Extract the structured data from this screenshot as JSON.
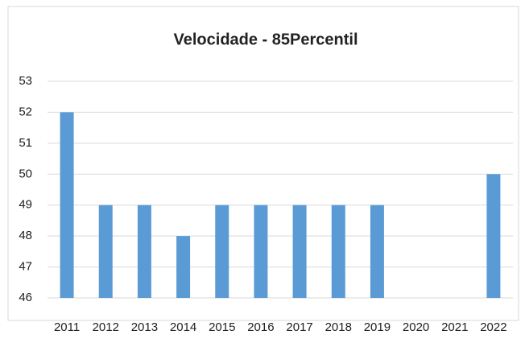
{
  "chart_data": {
    "type": "bar",
    "title": "Velocidade - 85Percentil",
    "categories": [
      "2011",
      "2012",
      "2013",
      "2014",
      "2015",
      "2016",
      "2017",
      "2018",
      "2019",
      "2020",
      "2021",
      "2022"
    ],
    "values": [
      52,
      49,
      49,
      48,
      49,
      49,
      49,
      49,
      49,
      null,
      null,
      50
    ],
    "color": "#5b9bd5",
    "ylim": [
      46,
      53
    ],
    "yticks": [
      46,
      47,
      48,
      49,
      50,
      51,
      52,
      53
    ],
    "grid": true
  }
}
